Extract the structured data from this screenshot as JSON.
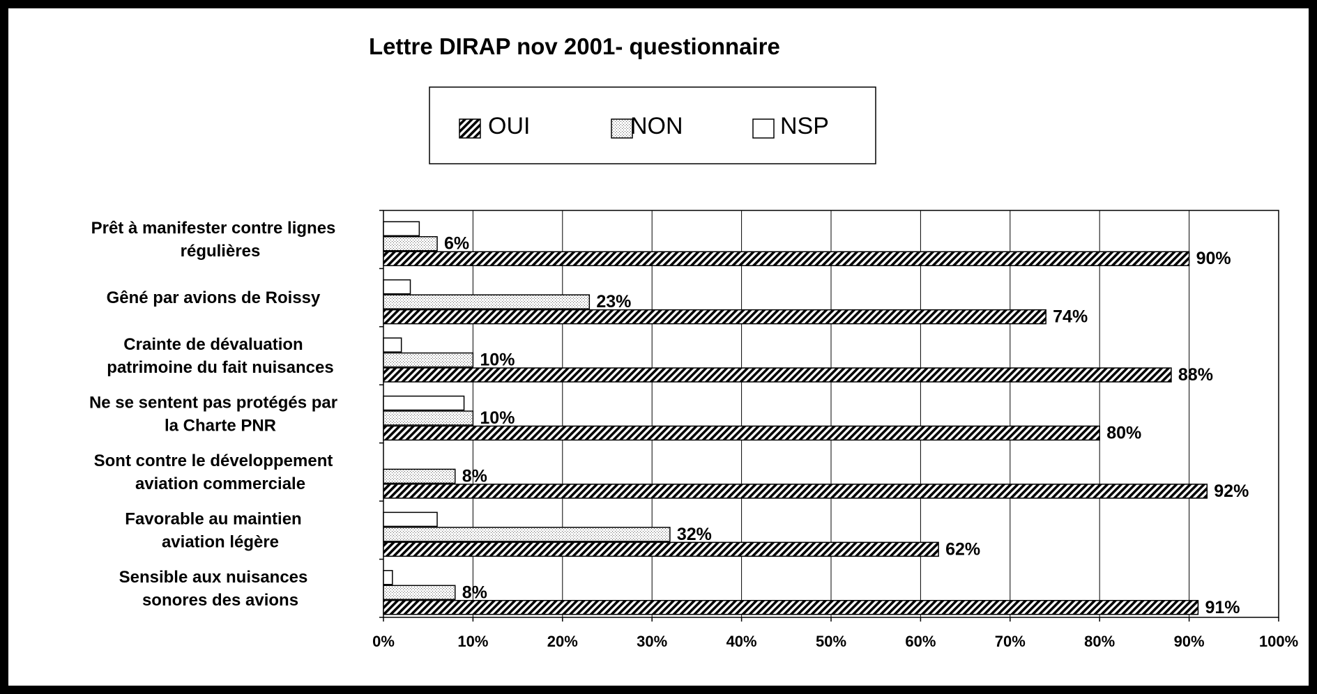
{
  "chart_data": {
    "type": "bar",
    "orientation": "horizontal",
    "title": "Lettre DIRAP nov 2001- questionnaire",
    "categories": [
      [
        "Prêt à manifester contre lignes",
        "régulières"
      ],
      [
        "Gêné par avions de Roissy"
      ],
      [
        "Crainte de dévaluation",
        "patrimoine du fait nuisances"
      ],
      [
        "Ne se sentent pas protégés par",
        "la Charte PNR"
      ],
      [
        "Sont contre le développement",
        "aviation commerciale"
      ],
      [
        "Favorable au maintien",
        "aviation légère"
      ],
      [
        "Sensible aux nuisances",
        "sonores des avions"
      ]
    ],
    "series": [
      {
        "name": "OUI",
        "pattern": "hatch",
        "values": [
          90,
          74,
          88,
          80,
          92,
          62,
          91
        ],
        "labels": [
          "90%",
          "74%",
          "88%",
          "80%",
          "92%",
          "62%",
          "91%"
        ]
      },
      {
        "name": "NON",
        "pattern": "dots",
        "values": [
          6,
          23,
          10,
          10,
          8,
          32,
          8
        ],
        "labels": [
          "6%",
          "23%",
          "10%",
          "10%",
          "8%",
          "32%",
          "8%"
        ]
      },
      {
        "name": "NSP",
        "pattern": "white",
        "values": [
          4,
          3,
          2,
          9,
          0,
          6,
          1
        ],
        "labels": null
      }
    ],
    "xlim": [
      0,
      100
    ],
    "xticks": [
      "0%",
      "10%",
      "20%",
      "30%",
      "40%",
      "50%",
      "60%",
      "70%",
      "80%",
      "90%",
      "100%"
    ],
    "grid": true,
    "legend": "top-center",
    "colors": {
      "frame": "#000000",
      "plot_bg": "#ffffff",
      "bar_stroke": "#000000"
    }
  }
}
